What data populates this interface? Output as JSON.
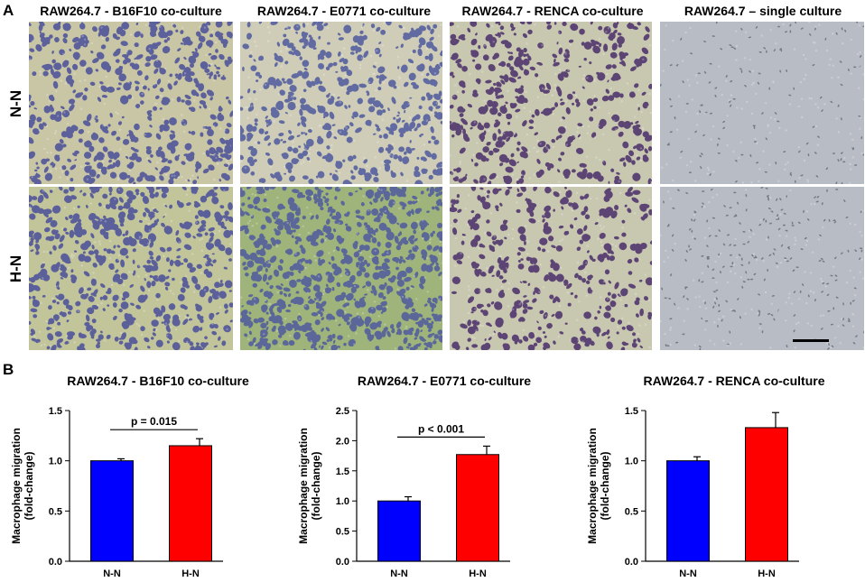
{
  "panel_a": {
    "letter": "A",
    "columns": [
      {
        "title": "RAW264.7 - B16F10 co-culture",
        "stain": "#4a4f9a",
        "bg_top": "#c9c6a6",
        "bg_bottom": "#c2c59a",
        "density_nn": 0.55,
        "density_hn": 0.6
      },
      {
        "title": "RAW264.7 - E0771 co-culture",
        "stain": "#4f5a9e",
        "bg_top": "#cfcdb8",
        "bg_bottom": "#9fb47a",
        "density_nn": 0.5,
        "density_hn": 0.8
      },
      {
        "title": "RAW264.7 - RENCA co-culture",
        "stain": "#4a2f6a",
        "bg_top": "#c8c7b0",
        "bg_bottom": "#c8c7b0",
        "density_nn": 0.45,
        "density_hn": 0.4
      },
      {
        "title": "RAW264.7 – single culture",
        "stain": "#6a6f7a",
        "bg_top": "#b8bcc4",
        "bg_bottom": "#b8bcc4",
        "density_nn": 0.15,
        "density_hn": 0.25
      }
    ],
    "rows": [
      "N-N",
      "H-N"
    ]
  },
  "panel_b": {
    "letter": "B"
  },
  "chart_data": [
    {
      "type": "bar",
      "title": "RAW264.7 - B16F10 co-culture",
      "ylabel": "Macrophage migration (fold-change)",
      "ylabel_lines": [
        "Macrophage migration",
        "(fold-change)"
      ],
      "categories": [
        "N-N",
        "H-N"
      ],
      "values": [
        1.0,
        1.15
      ],
      "errors": [
        0.02,
        0.07
      ],
      "colors": [
        "#0000ff",
        "#ff0000"
      ],
      "ylim": [
        0,
        1.5
      ],
      "yticks": [
        "0.0",
        "0.5",
        "1.0",
        "1.5"
      ],
      "ytick_values": [
        0,
        0.5,
        1.0,
        1.5
      ],
      "annotation": "p = 0.015"
    },
    {
      "type": "bar",
      "title": "RAW264.7 - E0771 co-culture",
      "ylabel": "Macrophage migration (fold-change)",
      "ylabel_lines": [
        "Macrophage migration",
        "(fold-change)"
      ],
      "categories": [
        "N-N",
        "H-N"
      ],
      "values": [
        1.0,
        1.77
      ],
      "errors": [
        0.07,
        0.14
      ],
      "colors": [
        "#0000ff",
        "#ff0000"
      ],
      "ylim": [
        0,
        2.5
      ],
      "yticks": [
        "0.0",
        "0.5",
        "1.0",
        "1.5",
        "2.0",
        "2.5"
      ],
      "ytick_values": [
        0,
        0.5,
        1.0,
        1.5,
        2.0,
        2.5
      ],
      "annotation": "p < 0.001"
    },
    {
      "type": "bar",
      "title": "RAW264.7 - RENCA co-culture",
      "ylabel": "Macrophage migration (fold-change)",
      "ylabel_lines": [
        "Macrophage migration",
        "(fold-change)"
      ],
      "categories": [
        "N-N",
        "H-N"
      ],
      "values": [
        1.0,
        1.33
      ],
      "errors": [
        0.04,
        0.15
      ],
      "colors": [
        "#0000ff",
        "#ff0000"
      ],
      "ylim": [
        0,
        1.5
      ],
      "yticks": [
        "0.0",
        "0.5",
        "1.0",
        "1.5"
      ],
      "ytick_values": [
        0,
        0.5,
        1.0,
        1.5
      ],
      "annotation": ""
    }
  ]
}
